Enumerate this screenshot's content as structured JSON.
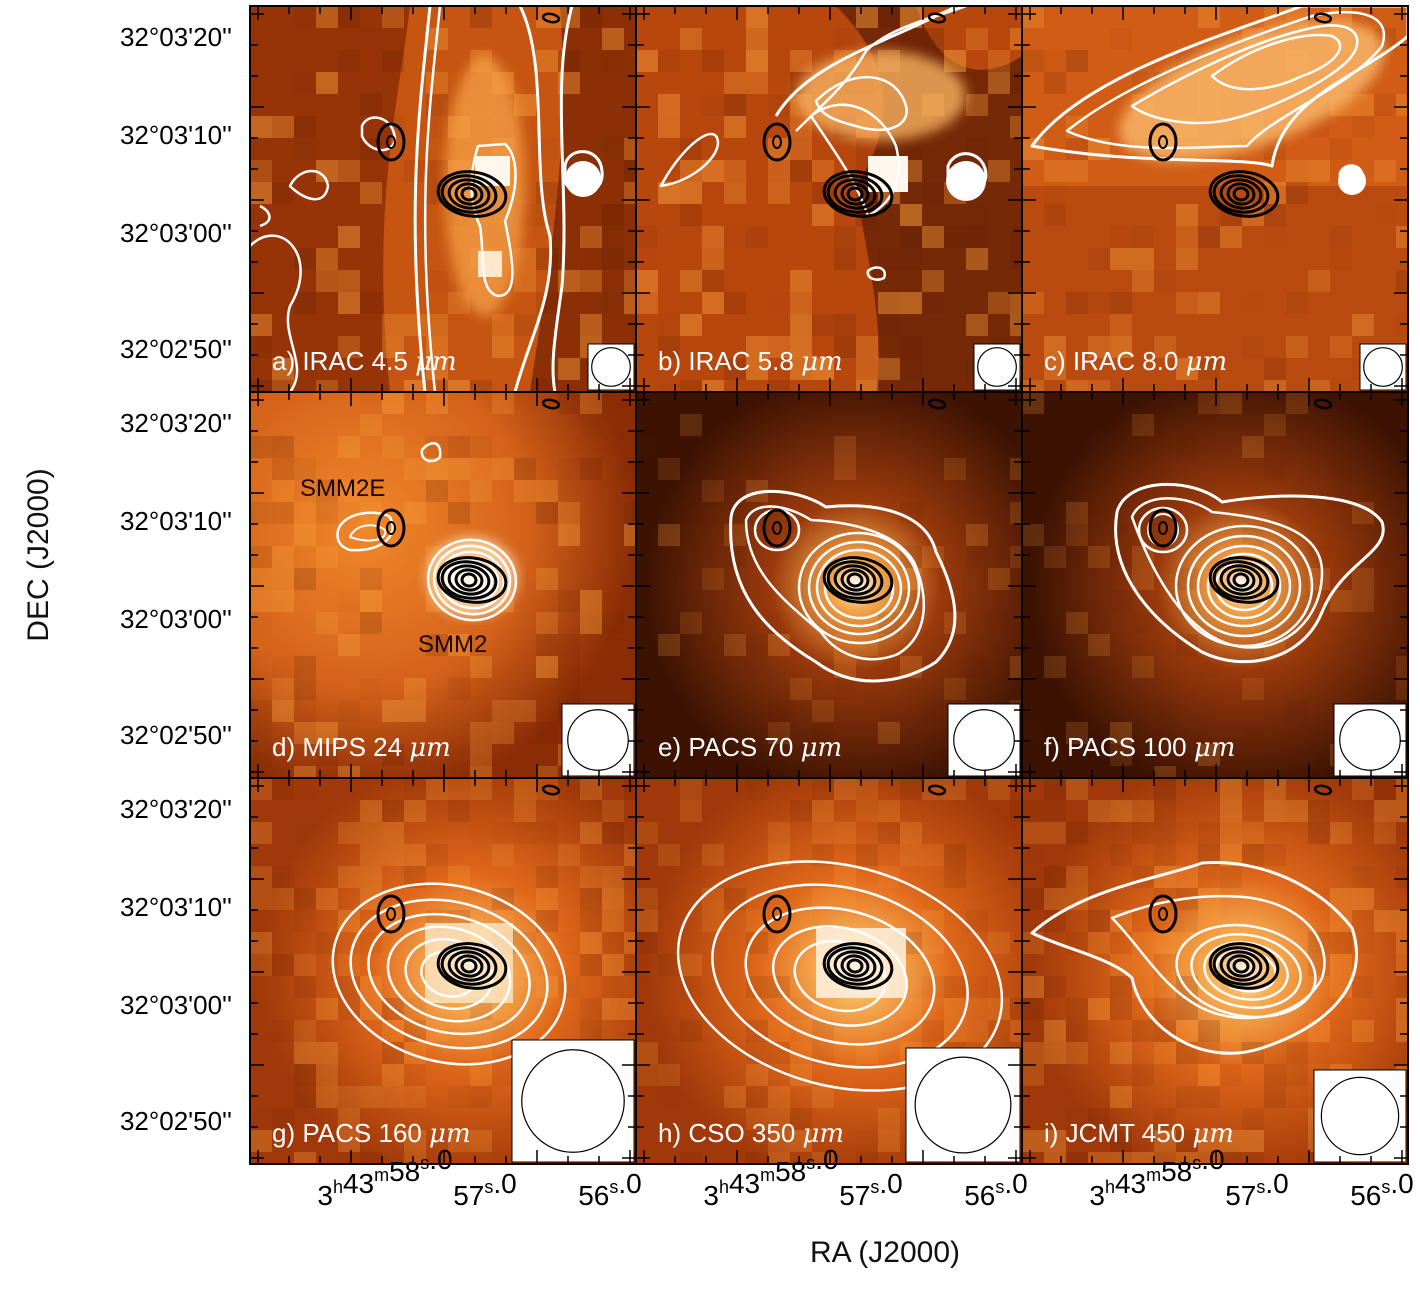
{
  "axis_labels": {
    "y": "DEC (J2000)",
    "x": "RA (J2000)"
  },
  "dec_ticks": [
    "32°03'20''",
    "32°03'10''",
    "32°03'00''",
    "32°02'50''"
  ],
  "ra_ticks": [
    {
      "h": "3",
      "m": "43",
      "s": "58",
      "f": ".0"
    },
    {
      "s": "57",
      "f": ".0"
    },
    {
      "s": "56",
      "f": ".0"
    }
  ],
  "source_labels": {
    "east": "SMM2E",
    "main": "SMM2"
  },
  "panels": [
    {
      "label": "a) IRAC 4.5",
      "unit": "μm",
      "style": "irac1"
    },
    {
      "label": "b) IRAC 5.8",
      "unit": "μm",
      "style": "irac2"
    },
    {
      "label": "c) IRAC 8.0",
      "unit": "μm",
      "style": "irac3"
    },
    {
      "label": "d) MIPS 24",
      "unit": "μm",
      "style": "mips"
    },
    {
      "label": "e) PACS 70",
      "unit": "μm",
      "style": "pacs70"
    },
    {
      "label": "f) PACS 100",
      "unit": "μm",
      "style": "pacs100"
    },
    {
      "label": "g) PACS 160",
      "unit": "μm",
      "style": "pacs160"
    },
    {
      "label": "h) CSO 350",
      "unit": "μm",
      "style": "cso"
    },
    {
      "label": "i) JCMT 450",
      "unit": "μm",
      "style": "jcmt"
    }
  ],
  "colors": {
    "dark": "#3a0d00",
    "mid": "#b0430a",
    "bright": "#f08a25",
    "peak": "#fff3e0",
    "contour_white": "#ffffff",
    "contour_black": "#000000"
  }
}
